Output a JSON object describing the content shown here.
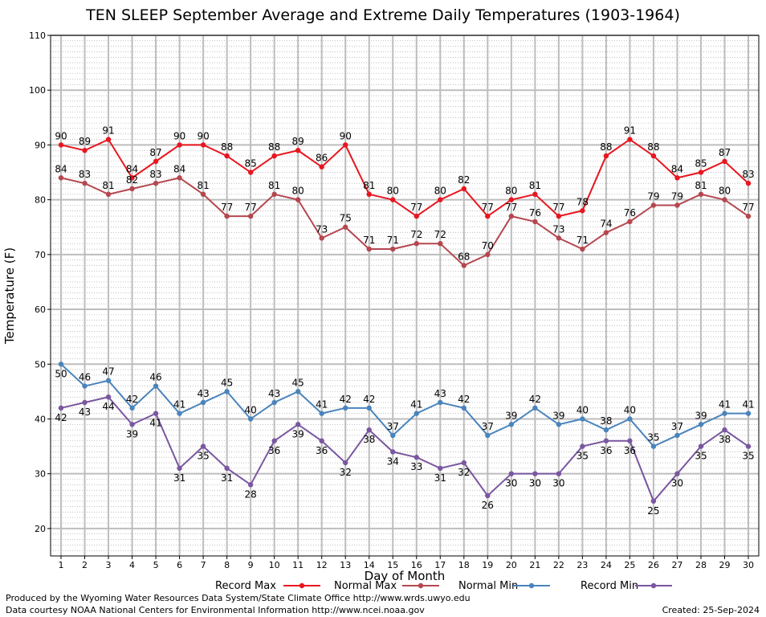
{
  "page": {
    "title": "TEN SLEEP September Average and Extreme Daily Temperatures (1903-1964)",
    "credit_line_1": "Produced by the Wyoming Water Resources Data System/State Climate Office http://www.wrds.uwyo.edu",
    "credit_line_2": "Data courtesy NOAA National Centers for Environmental Information http://www.ncei.noaa.gov",
    "created": "Created:  25-Sep-2024"
  },
  "chart_data": {
    "type": "line",
    "title": "TEN SLEEP September Average and Extreme Daily Temperatures (1903-1964)",
    "xlabel": "Day of Month",
    "ylabel": "Temperature (F)",
    "xlim": [
      1,
      30
    ],
    "ylim": [
      15,
      110
    ],
    "yticks": [
      20,
      30,
      40,
      50,
      60,
      70,
      80,
      90,
      100,
      110
    ],
    "grid": true,
    "legend_position": "bottom",
    "x": [
      1,
      2,
      3,
      4,
      5,
      6,
      7,
      8,
      9,
      10,
      11,
      12,
      13,
      14,
      15,
      16,
      17,
      18,
      19,
      20,
      21,
      22,
      23,
      24,
      25,
      26,
      27,
      28,
      29,
      30
    ],
    "series": [
      {
        "name": "Record Max",
        "color": "#e8161f",
        "values": [
          90,
          89,
          91,
          84,
          87,
          90,
          90,
          88,
          85,
          88,
          89,
          86,
          90,
          81,
          80,
          77,
          80,
          82,
          77,
          80,
          81,
          77,
          78,
          88,
          91,
          88,
          84,
          85,
          87,
          83
        ],
        "labels": [
          "90",
          "89",
          "91",
          "84",
          "87",
          "90",
          "90",
          "88",
          "85",
          "88",
          "89",
          "86",
          "90",
          "81",
          "80",
          "77",
          "80",
          "82",
          "77",
          "80",
          "81",
          "77",
          "78",
          "88",
          "91",
          "88",
          "84",
          "85",
          "87",
          "83"
        ]
      },
      {
        "name": "Normal Max",
        "color": "#b5474f",
        "values": [
          84,
          83,
          81,
          82,
          83,
          84,
          81,
          77,
          77,
          81,
          80,
          73,
          75,
          71,
          71,
          72,
          72,
          68,
          70,
          77,
          76,
          73,
          71,
          74,
          76,
          79,
          79,
          81,
          80,
          77
        ],
        "labels": [
          "84",
          "83",
          "81",
          "82",
          "83",
          "84",
          "81",
          "77",
          "77",
          "81",
          "80",
          "73",
          "75",
          "71",
          "71",
          "72",
          "72",
          "68",
          "70",
          "77",
          "76",
          "73",
          "71",
          "74",
          "76",
          "79",
          "79",
          "81",
          "80",
          "77"
        ]
      },
      {
        "name": "Normal Min",
        "color": "#4a84bc",
        "values": [
          50,
          46,
          47,
          42,
          46,
          41,
          43,
          45,
          40,
          43,
          45,
          41,
          42,
          42,
          37,
          41,
          43,
          42,
          37,
          39,
          42,
          39,
          40,
          38,
          40,
          35,
          37,
          39,
          41,
          41
        ],
        "labels": [
          "50",
          "46",
          "47",
          "42",
          "46",
          "41",
          "43",
          "45",
          "40",
          "43",
          "45",
          "41",
          "42",
          "42",
          "37",
          "41",
          "43",
          "42",
          "37",
          "39",
          "42",
          "39",
          "40",
          "38",
          "40",
          "35",
          "37",
          "39",
          "41",
          "41"
        ]
      },
      {
        "name": "Record Min",
        "color": "#7a57a0",
        "values": [
          42,
          43,
          44,
          39,
          41,
          31,
          35,
          31,
          28,
          36,
          39,
          36,
          32,
          38,
          34,
          33,
          31,
          32,
          26,
          30,
          30,
          30,
          35,
          36,
          36,
          25,
          30,
          35,
          38,
          35
        ],
        "labels": [
          "42",
          "43",
          "44",
          "39",
          "41",
          "31",
          "35",
          "31",
          "28",
          "36",
          "39",
          "36",
          "32",
          "38",
          "34",
          "33",
          "31",
          "32",
          "26",
          "30",
          "30",
          "30",
          "35",
          "36",
          "36",
          "25",
          "30",
          "35",
          "38",
          "35"
        ]
      }
    ]
  }
}
